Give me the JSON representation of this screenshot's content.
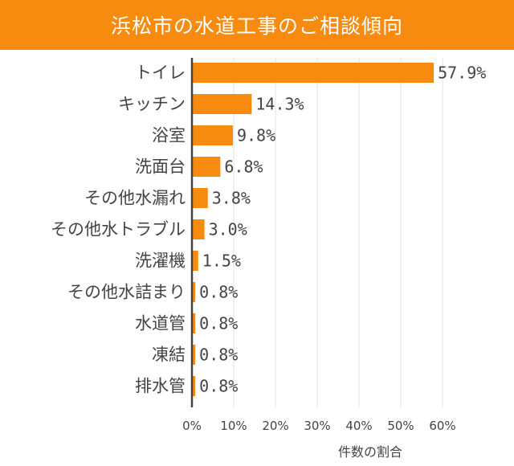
{
  "colors": {
    "accent": "#f68b0f",
    "bar": "#f68b0f",
    "text": "#444444",
    "grid": "#e2e2e2",
    "axis": "#444444",
    "title_text": "#ffffff"
  },
  "chart_data": {
    "type": "bar",
    "orientation": "horizontal",
    "title": "浜松市の水道工事のご相談傾向",
    "xlabel": "件数の割合",
    "ylabel": "",
    "categories": [
      "トイレ",
      "キッチン",
      "浴室",
      "洗面台",
      "その他水漏れ",
      "その他水トラブル",
      "洗濯機",
      "その他水詰まり",
      "水道管",
      "凍結",
      "排水管"
    ],
    "values": [
      57.9,
      14.3,
      9.8,
      6.8,
      3.8,
      3.0,
      1.5,
      0.8,
      0.8,
      0.8,
      0.8
    ],
    "value_labels": [
      "57.9%",
      "14.3%",
      "9.8%",
      "6.8%",
      "3.8%",
      "3.0%",
      "1.5%",
      "0.8%",
      "0.8%",
      "0.8%",
      "0.8%"
    ],
    "xlim": [
      0,
      60
    ],
    "xticks": [
      0,
      10,
      20,
      30,
      40,
      50,
      60
    ],
    "xtick_labels": [
      "0%",
      "10%",
      "20%",
      "30%",
      "40%",
      "50%",
      "60%"
    ],
    "grid": true,
    "legend": "none"
  }
}
